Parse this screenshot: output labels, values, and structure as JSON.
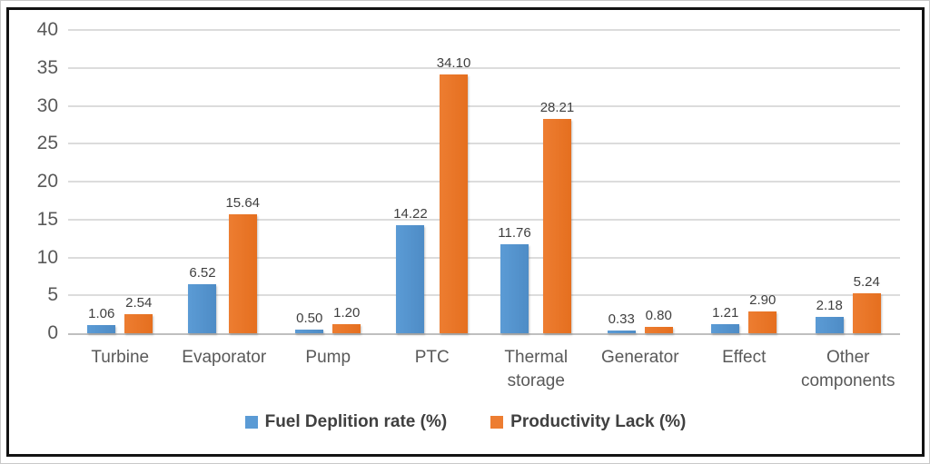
{
  "chart_data": {
    "type": "bar",
    "title": "",
    "xlabel": "",
    "ylabel": "",
    "categories": [
      "Turbine",
      "Evaporator",
      "Pump",
      "PTC",
      "Thermal storage",
      "Generator",
      "Effect",
      "Other components"
    ],
    "series": [
      {
        "name": "Fuel Deplition rate (%)",
        "color": "#5B9BD5",
        "color_dark": "#4E8CC6",
        "values": [
          1.06,
          6.52,
          0.5,
          14.22,
          11.76,
          0.33,
          1.21,
          2.18
        ],
        "labels": [
          "1.06",
          "6.52",
          "0.50",
          "14.22",
          "11.76",
          "0.33",
          "1.21",
          "2.18"
        ]
      },
      {
        "name": "Productivity Lack (%)",
        "color": "#ED7D31",
        "color_dark": "#E56F1F",
        "values": [
          2.54,
          15.64,
          1.2,
          34.1,
          28.21,
          0.8,
          2.9,
          5.24
        ],
        "labels": [
          "2.54",
          "15.64",
          "1.20",
          "34.10",
          "28.21",
          "0.80",
          "2.90",
          "5.24"
        ]
      }
    ],
    "ylim": [
      0,
      40
    ],
    "yticks": [
      0,
      5,
      10,
      15,
      20,
      25,
      30,
      35,
      40
    ],
    "grid": true,
    "legend_position": "bottom"
  },
  "colors": {
    "gridline": "#DCDCDC",
    "axis_line": "#BFBFBF",
    "tick_text": "#595959",
    "data_label_text": "#3F3F3F",
    "legend_text": "#404040",
    "frame_border": "#121212"
  }
}
